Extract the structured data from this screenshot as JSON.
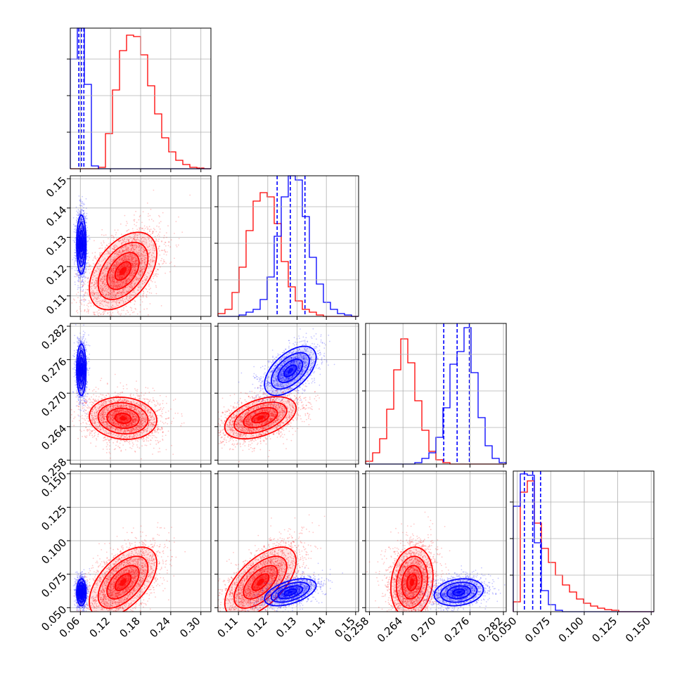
{
  "chart_data": {
    "type": "corner",
    "grid": true,
    "colors": {
      "model_a": "#ff0000",
      "model_b": "#0000ff",
      "quantile": "#0000ff"
    },
    "parameters": [
      {
        "range": [
          0.04,
          0.32
        ],
        "ticks": [
          0.06,
          0.12,
          0.18,
          0.24,
          0.3
        ],
        "tick_labels": [
          "0.06",
          "0.12",
          "0.18",
          "0.24",
          "0.30"
        ]
      },
      {
        "range": [
          0.103,
          0.151
        ],
        "ticks": [
          0.11,
          0.12,
          0.13,
          0.14,
          0.15
        ],
        "tick_labels": [
          "0.11",
          "0.12",
          "0.13",
          "0.14",
          "0.15"
        ]
      },
      {
        "range": [
          0.2573,
          0.2825
        ],
        "ticks": [
          0.258,
          0.264,
          0.27,
          0.276,
          0.282
        ],
        "tick_labels": [
          "0.258",
          "0.264",
          "0.270",
          "0.276",
          "0.282"
        ]
      },
      {
        "range": [
          0.047,
          0.152
        ],
        "ticks": [
          0.05,
          0.075,
          0.1,
          0.125,
          0.15
        ],
        "tick_labels": [
          "0.050",
          "0.075",
          "0.100",
          "0.125",
          "0.150"
        ]
      }
    ],
    "histograms": [
      {
        "edges": [
          0.04,
          0.054,
          0.068,
          0.082,
          0.096,
          0.11,
          0.124,
          0.138,
          0.152,
          0.166,
          0.18,
          0.194,
          0.208,
          0.222,
          0.236,
          0.25,
          0.264,
          0.278,
          0.292,
          0.306,
          0.32
        ],
        "red": [
          0,
          0,
          0,
          0,
          0.01,
          0.25,
          0.56,
          0.84,
          0.95,
          0.94,
          0.81,
          0.59,
          0.39,
          0.22,
          0.12,
          0.06,
          0.03,
          0.01,
          0.005,
          0
        ],
        "blue": [
          0.78,
          1.0,
          0.6,
          0.02,
          0,
          0,
          0,
          0,
          0,
          0,
          0,
          0,
          0,
          0,
          0,
          0,
          0,
          0,
          0,
          0
        ],
        "quantiles": [
          0.057,
          0.062,
          0.067
        ]
      },
      {
        "edges": [
          0.103,
          0.1054,
          0.1078,
          0.1102,
          0.1126,
          0.115,
          0.1174,
          0.1198,
          0.1222,
          0.1246,
          0.127,
          0.1294,
          0.1318,
          0.1342,
          0.1366,
          0.139,
          0.1414,
          0.1438,
          0.1462,
          0.1486,
          0.151
        ],
        "red": [
          0.02,
          0.05,
          0.17,
          0.35,
          0.61,
          0.82,
          0.88,
          0.85,
          0.66,
          0.39,
          0.21,
          0.11,
          0.05,
          0.03,
          0.01,
          0,
          0,
          0,
          0,
          0
        ],
        "blue": [
          0,
          0,
          0,
          0.01,
          0.03,
          0.05,
          0.12,
          0.28,
          0.57,
          0.85,
          1.0,
          0.97,
          0.71,
          0.42,
          0.23,
          0.1,
          0.05,
          0.02,
          0.01,
          0
        ],
        "quantiles": [
          0.1232,
          0.1277,
          0.1327
        ]
      },
      {
        "edges": [
          0.2573,
          0.25856,
          0.25982,
          0.26108,
          0.26234,
          0.2636,
          0.26486,
          0.26612,
          0.26738,
          0.26864,
          0.2699,
          0.27116,
          0.27242,
          0.27368,
          0.27494,
          0.2762,
          0.27746,
          0.27872,
          0.27998,
          0.28124,
          0.2825
        ],
        "red": [
          0.02,
          0.08,
          0.18,
          0.39,
          0.67,
          0.89,
          0.72,
          0.45,
          0.24,
          0.09,
          0.03,
          0.01,
          0,
          0,
          0,
          0,
          0,
          0,
          0,
          0
        ],
        "blue": [
          0,
          0,
          0,
          0,
          0,
          0,
          0,
          0.01,
          0.04,
          0.08,
          0.19,
          0.4,
          0.71,
          0.8,
          0.97,
          0.65,
          0.33,
          0.13,
          0.04,
          0.01
        ],
        "quantiles": [
          0.2713,
          0.2737,
          0.2759
        ]
      },
      {
        "edges": [
          0.047,
          0.05225,
          0.0575,
          0.06275,
          0.068,
          0.07325,
          0.0785,
          0.08375,
          0.089,
          0.09425,
          0.0995,
          0.10475,
          0.11,
          0.11525,
          0.1205,
          0.12575,
          0.131,
          0.13625,
          0.1415,
          0.14675,
          0.152
        ],
        "red": [
          0.07,
          0.85,
          0.93,
          0.63,
          0.45,
          0.35,
          0.26,
          0.19,
          0.14,
          0.09,
          0.06,
          0.04,
          0.025,
          0.015,
          0.01,
          0,
          0,
          0,
          0,
          0
        ],
        "blue": [
          0.75,
          0.98,
          0.97,
          0.49,
          0.15,
          0.05,
          0.01,
          0,
          0,
          0,
          0,
          0,
          0,
          0,
          0,
          0,
          0,
          0,
          0,
          0
        ],
        "quantiles": [
          0.0553,
          0.0615,
          0.0674
        ]
      }
    ],
    "pairs": [
      {
        "x": 0,
        "y": 1,
        "red": {
          "mean": [
            0.145,
            0.1185
          ],
          "sd": [
            0.032,
            0.0063
          ],
          "rho": 0.45
        },
        "blue": {
          "mean": [
            0.062,
            0.1275
          ],
          "sd": [
            0.0045,
            0.0048
          ],
          "rho": 0.0
        }
      },
      {
        "x": 0,
        "y": 2,
        "red": {
          "mean": [
            0.145,
            0.2655
          ],
          "sd": [
            0.032,
            0.0018
          ],
          "rho": -0.1
        },
        "blue": {
          "mean": [
            0.062,
            0.2742
          ],
          "sd": [
            0.0045,
            0.0022
          ],
          "rho": 0.0
        }
      },
      {
        "x": 1,
        "y": 2,
        "red": {
          "mean": [
            0.1175,
            0.2656
          ],
          "sd": [
            0.0058,
            0.0018
          ],
          "rho": 0.45
        },
        "blue": {
          "mean": [
            0.1277,
            0.274
          ],
          "sd": [
            0.0042,
            0.0021
          ],
          "rho": 0.55
        }
      },
      {
        "x": 0,
        "y": 3,
        "red": {
          "mean": [
            0.145,
            0.069
          ],
          "sd": [
            0.032,
            0.0125
          ],
          "rho": 0.55
        },
        "blue": {
          "mean": [
            0.062,
            0.0615
          ],
          "sd": [
            0.0045,
            0.0048
          ],
          "rho": 0.0
        }
      },
      {
        "x": 1,
        "y": 3,
        "red": {
          "mean": [
            0.1175,
            0.069
          ],
          "sd": [
            0.0058,
            0.0125
          ],
          "rho": 0.6
        },
        "blue": {
          "mean": [
            0.1277,
            0.0615
          ],
          "sd": [
            0.0042,
            0.0048
          ],
          "rho": 0.5
        }
      },
      {
        "x": 2,
        "y": 3,
        "red": {
          "mean": [
            0.2656,
            0.069
          ],
          "sd": [
            0.0018,
            0.0125
          ],
          "rho": 0.15
        },
        "blue": {
          "mean": [
            0.274,
            0.0615
          ],
          "sd": [
            0.0021,
            0.0048
          ],
          "rho": 0.2
        }
      }
    ]
  }
}
